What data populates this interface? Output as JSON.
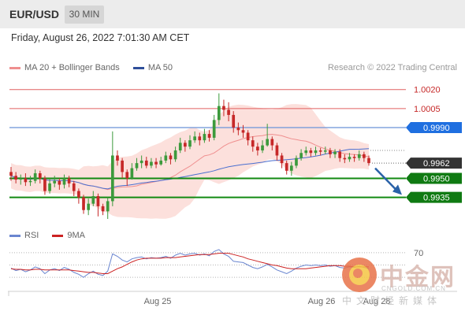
{
  "header": {
    "symbol": "EUR/USD",
    "timeframe": "30 MIN"
  },
  "datetime": "Friday, August 26, 2022 7:01:30 AM CET",
  "legend": {
    "ma20_label": "MA 20 + Bollinger Bands",
    "ma50_label": "MA 50",
    "credit": "Research © 2022 Trading Central",
    "rsi_label": "RSI",
    "ma9_label": "9MA"
  },
  "colors": {
    "up": "#3c9a3c",
    "down": "#c62828",
    "bollinger": "#fbd5d0",
    "ma20": "#ef8f8f",
    "ma50": "#4a6fd0",
    "support": "#128a12",
    "resistance": "#e06060",
    "pivot": "#6a92d8",
    "current": "#333333",
    "arrow": "#2a62a8",
    "rsi": "#6a86d0",
    "rsi_ma": "#cc2222"
  },
  "watermark": {
    "name": "中金网",
    "url": "CNGOLD.COM.CN",
    "sub": "中文财经新媒体"
  },
  "chart_data": [
    {
      "type": "candlestick",
      "title": "EUR/USD 30 MIN",
      "x_ticks": [
        "Aug 25",
        "Aug 26",
        "Aug 28"
      ],
      "ylim": [
        0.9918,
        1.0031
      ],
      "levels": [
        {
          "label": "1.0020",
          "value": 1.002,
          "kind": "resistance"
        },
        {
          "label": "1.0005",
          "value": 1.0005,
          "kind": "resistance"
        },
        {
          "label": "0.9990",
          "value": 0.999,
          "kind": "pivot"
        },
        {
          "label": "0.9962",
          "value": 0.9962,
          "kind": "current"
        },
        {
          "label": "0.9950",
          "value": 0.995,
          "kind": "support"
        },
        {
          "label": "0.9935",
          "value": 0.9935,
          "kind": "support"
        }
      ],
      "candles": [
        [
          0.9955,
          0.9952,
          0.9959,
          0.9948
        ],
        [
          0.9952,
          0.9949,
          0.9955,
          0.9946
        ],
        [
          0.9949,
          0.995,
          0.9953,
          0.9945
        ],
        [
          0.995,
          0.9947,
          0.9954,
          0.9944
        ],
        [
          0.9947,
          0.9948,
          0.9952,
          0.9944
        ],
        [
          0.9948,
          0.9954,
          0.9957,
          0.9946
        ],
        [
          0.9954,
          0.995,
          0.9956,
          0.9946
        ],
        [
          0.995,
          0.994,
          0.9952,
          0.9937
        ],
        [
          0.994,
          0.9946,
          0.995,
          0.9938
        ],
        [
          0.9946,
          0.9948,
          0.9952,
          0.9943
        ],
        [
          0.9948,
          0.9945,
          0.995,
          0.9941
        ],
        [
          0.9945,
          0.995,
          0.9953,
          0.9942
        ],
        [
          0.995,
          0.9946,
          0.9952,
          0.9943
        ],
        [
          0.9946,
          0.994,
          0.9948,
          0.9936
        ],
        [
          0.994,
          0.9935,
          0.9942,
          0.993
        ],
        [
          0.9935,
          0.9925,
          0.9937,
          0.9922
        ],
        [
          0.9925,
          0.993,
          0.9934,
          0.9921
        ],
        [
          0.993,
          0.9936,
          0.994,
          0.9928
        ],
        [
          0.9936,
          0.9928,
          0.9938,
          0.992
        ],
        [
          0.9928,
          0.9924,
          0.993,
          0.9921
        ],
        [
          0.9924,
          0.9932,
          0.9935,
          0.9918
        ],
        [
          0.9932,
          0.9968,
          0.9987,
          0.9928
        ],
        [
          0.9968,
          0.9964,
          0.9972,
          0.996
        ],
        [
          0.9964,
          0.9955,
          0.9966,
          0.995
        ],
        [
          0.9955,
          0.995,
          0.9957,
          0.9944
        ],
        [
          0.995,
          0.9958,
          0.9962,
          0.9949
        ],
        [
          0.9958,
          0.9962,
          0.9966,
          0.9956
        ],
        [
          0.9962,
          0.9964,
          0.9968,
          0.9958
        ],
        [
          0.9964,
          0.996,
          0.9967,
          0.9958
        ],
        [
          0.996,
          0.9963,
          0.9966,
          0.9958
        ],
        [
          0.9963,
          0.9961,
          0.9966,
          0.9958
        ],
        [
          0.9961,
          0.9964,
          0.9967,
          0.996
        ],
        [
          0.9964,
          0.9968,
          0.9971,
          0.9962
        ],
        [
          0.9968,
          0.9965,
          0.997,
          0.9961
        ],
        [
          0.9965,
          0.9972,
          0.9975,
          0.9963
        ],
        [
          0.9972,
          0.9978,
          0.9982,
          0.997
        ],
        [
          0.9978,
          0.9975,
          0.998,
          0.9971
        ],
        [
          0.9975,
          0.998,
          0.9984,
          0.9973
        ],
        [
          0.998,
          0.9983,
          0.9987,
          0.9978
        ],
        [
          0.9983,
          0.998,
          0.9986,
          0.9976
        ],
        [
          0.998,
          0.9985,
          0.9989,
          0.9978
        ],
        [
          0.9985,
          0.9982,
          0.9988,
          0.9979
        ],
        [
          0.9982,
          0.9996,
          1.0,
          0.998
        ],
        [
          0.9996,
          1.0007,
          1.0017,
          0.9992
        ],
        [
          1.0007,
          1.0004,
          1.0012,
          0.9999
        ],
        [
          1.0004,
          1.0,
          1.001,
          0.9995
        ],
        [
          1.0,
          0.999,
          1.0003,
          0.9986
        ],
        [
          0.999,
          0.9988,
          0.9994,
          0.9984
        ],
        [
          0.9988,
          0.9986,
          0.9992,
          0.9982
        ],
        [
          0.9986,
          0.998,
          0.9988,
          0.9976
        ],
        [
          0.998,
          0.9975,
          0.9983,
          0.9971
        ],
        [
          0.9975,
          0.9972,
          0.9978,
          0.9968
        ],
        [
          0.9972,
          0.9976,
          0.998,
          0.997
        ],
        [
          0.9976,
          0.9981,
          0.9993,
          0.9975
        ],
        [
          0.9981,
          0.9976,
          0.9983,
          0.9972
        ],
        [
          0.9976,
          0.9968,
          0.9978,
          0.9964
        ],
        [
          0.9968,
          0.9962,
          0.997,
          0.9958
        ],
        [
          0.9962,
          0.9956,
          0.9964,
          0.9953
        ],
        [
          0.9956,
          0.996,
          0.9963,
          0.9952
        ],
        [
          0.996,
          0.9966,
          0.9968,
          0.9958
        ],
        [
          0.9966,
          0.997,
          0.9973,
          0.9964
        ],
        [
          0.997,
          0.9972,
          0.9975,
          0.9968
        ],
        [
          0.9972,
          0.997,
          0.9974,
          0.9967
        ],
        [
          0.997,
          0.9972,
          0.9975,
          0.9968
        ],
        [
          0.9972,
          0.9971,
          0.9974,
          0.9968
        ],
        [
          0.9971,
          0.9972,
          0.9975,
          0.9969
        ],
        [
          0.9972,
          0.9969,
          0.9974,
          0.9966
        ],
        [
          0.9969,
          0.9971,
          0.9973,
          0.9966
        ],
        [
          0.9971,
          0.9966,
          0.9973,
          0.9963
        ],
        [
          0.9966,
          0.9965,
          0.9969,
          0.9962
        ],
        [
          0.9965,
          0.9967,
          0.997,
          0.9963
        ],
        [
          0.9967,
          0.9966,
          0.9969,
          0.9963
        ],
        [
          0.9966,
          0.9969,
          0.9972,
          0.9964
        ],
        [
          0.9969,
          0.9966,
          0.9971,
          0.9963
        ],
        [
          0.9966,
          0.9962,
          0.9968,
          0.996
        ]
      ],
      "rsi": {
        "ylim": [
          20,
          80
        ],
        "level_label": "70",
        "levels": [
          70,
          50,
          30
        ],
        "series": [
          {
            "name": "RSI",
            "values": [
              45,
              41,
              43,
              39,
              42,
              47,
              44,
              36,
              42,
              44,
              41,
              46,
              43,
              38,
              35,
              30,
              36,
              40,
              35,
              33,
              40,
              68,
              64,
              58,
              55,
              60,
              62,
              63,
              60,
              62,
              61,
              62,
              64,
              61,
              66,
              69,
              66,
              68,
              69,
              66,
              68,
              65,
              72,
              75,
              68,
              64,
              56,
              55,
              54,
              50,
              46,
              44,
              47,
              51,
              47,
              42,
              39,
              36,
              40,
              45,
              48,
              50,
              49,
              50,
              49,
              50,
              48,
              49,
              46,
              45,
              47,
              46,
              48,
              46,
              44
            ]
          },
          {
            "name": "9MA",
            "values": [
              44,
              43,
              43,
              42,
              42,
              43,
              43,
              42,
              42,
              42,
              42,
              42,
              42,
              41,
              40,
              39,
              38,
              38,
              37,
              36,
              36,
              40,
              44,
              47,
              51,
              55,
              58,
              60,
              61,
              61,
              61,
              61,
              62,
              62,
              62,
              63,
              64,
              65,
              66,
              67,
              67,
              67,
              68,
              69,
              69,
              69,
              67,
              65,
              63,
              60,
              58,
              56,
              54,
              52,
              50,
              49,
              47,
              45,
              44,
              44,
              44,
              44,
              45,
              46,
              47,
              48,
              49,
              49,
              49,
              48,
              48,
              47,
              47,
              47,
              47
            ]
          }
        ]
      }
    }
  ]
}
